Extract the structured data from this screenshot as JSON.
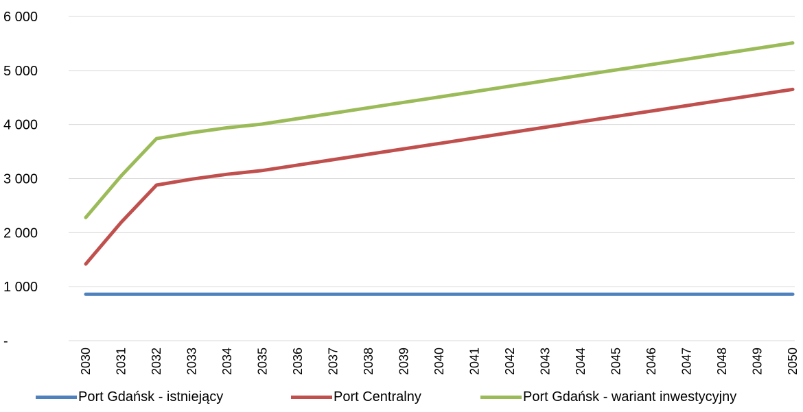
{
  "chart_data": {
    "type": "line",
    "categories": [
      "2030",
      "2031",
      "2032",
      "2033",
      "2034",
      "2035",
      "2036",
      "2037",
      "2038",
      "2039",
      "2040",
      "2041",
      "2042",
      "2043",
      "2044",
      "2045",
      "2046",
      "2047",
      "2048",
      "2049",
      "2050"
    ],
    "yticks": [
      {
        "value": 0,
        "label": "-"
      },
      {
        "value": 1000,
        "label": "1 000"
      },
      {
        "value": 2000,
        "label": "2 000"
      },
      {
        "value": 3000,
        "label": "3 000"
      },
      {
        "value": 4000,
        "label": "4 000"
      },
      {
        "value": 5000,
        "label": "5 000"
      },
      {
        "value": 6000,
        "label": "6 000"
      }
    ],
    "ylim": [
      0,
      6000
    ],
    "grid": "horizontal",
    "legend_position": "bottom",
    "series": [
      {
        "name": "Port Gdańsk - istniejący",
        "color": "#4f81bd",
        "values": [
          860,
          860,
          860,
          860,
          860,
          860,
          860,
          860,
          860,
          860,
          860,
          860,
          860,
          860,
          860,
          860,
          860,
          860,
          860,
          860,
          860
        ]
      },
      {
        "name": "Port Centralny",
        "color": "#c0504d",
        "values": [
          1420,
          2190,
          2880,
          2990,
          3080,
          3150,
          3250,
          3350,
          3450,
          3550,
          3650,
          3750,
          3850,
          3950,
          4050,
          4150,
          4250,
          4350,
          4450,
          4550,
          4650
        ]
      },
      {
        "name": "Port Gdańsk - wariant inwestycyjny",
        "color": "#9bbb59",
        "values": [
          2280,
          3050,
          3740,
          3850,
          3940,
          4010,
          4110,
          4210,
          4310,
          4410,
          4510,
          4610,
          4710,
          4810,
          4910,
          5010,
          5110,
          5210,
          5310,
          5410,
          5510
        ]
      }
    ]
  }
}
